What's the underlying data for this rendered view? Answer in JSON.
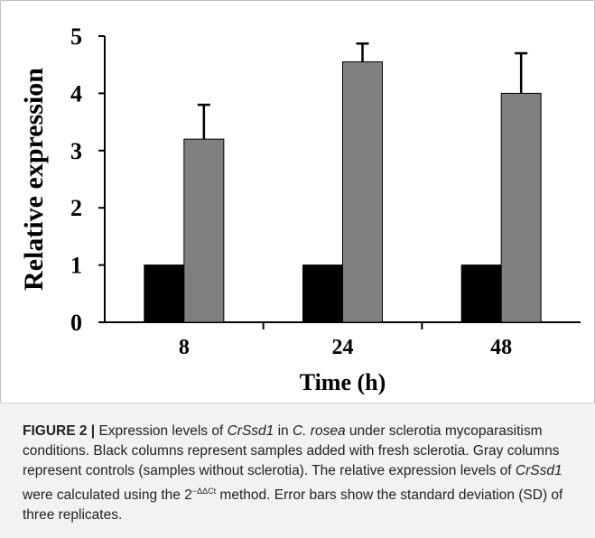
{
  "chart_data": {
    "type": "bar",
    "categories": [
      "8",
      "24",
      "48"
    ],
    "series": [
      {
        "color": "#000000",
        "values": [
          1,
          1,
          1
        ],
        "errors": [
          0,
          0,
          0
        ]
      },
      {
        "color": "#808080",
        "values": [
          3.2,
          4.55,
          4.0
        ],
        "errors": [
          0.6,
          0.32,
          0.7
        ]
      }
    ],
    "xlabel": "Time (h)",
    "ylabel": "Relative expression",
    "ylim": [
      0,
      5
    ],
    "yticks": [
      0,
      1,
      2,
      3,
      4,
      5
    ],
    "grid": false,
    "error_bars": true
  },
  "caption": {
    "label": "FIGURE 2 |",
    "t1": " Expression levels of ",
    "gene1": "CrSsd1",
    "t2": " in ",
    "species": "C. rosea",
    "t3": " under sclerotia mycoparasitism conditions. Black columns represent samples added with fresh sclerotia. Gray columns represent controls (samples without sclerotia). The relative expression levels of ",
    "gene2": "CrSsd1",
    "t4": " were calculated using the 2",
    "sup": "−ΔΔCt",
    "t5": " method. Error bars show the standard deviation (SD) of three replicates."
  }
}
